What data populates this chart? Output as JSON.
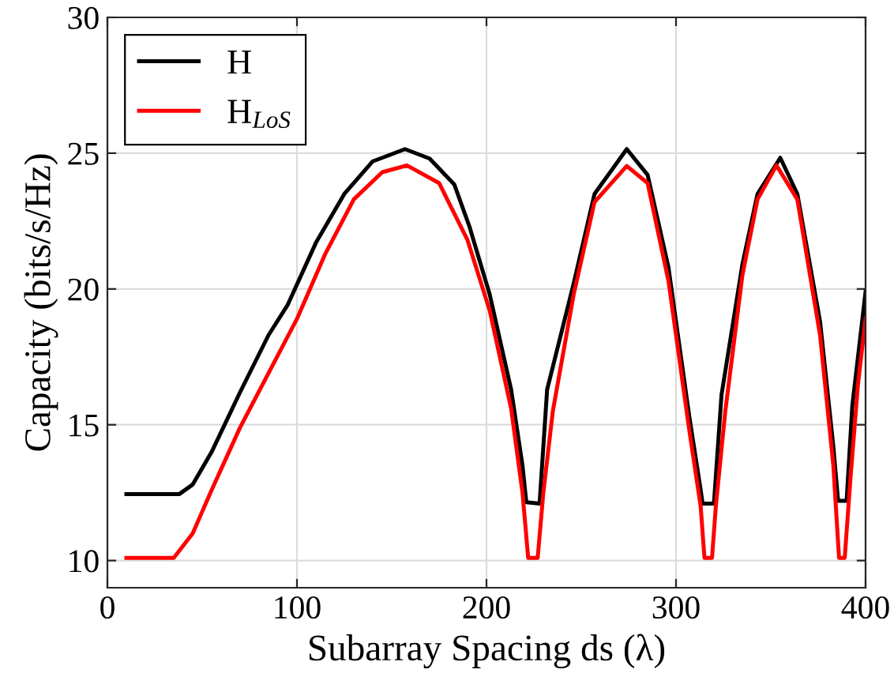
{
  "chart_data": {
    "type": "line",
    "xlabel": "Subarray Spacing ds (λ)",
    "ylabel": "Capacity (bits/s/Hz)",
    "xlim": [
      0,
      400
    ],
    "ylim": [
      9,
      30
    ],
    "xticks": [
      0,
      100,
      200,
      300,
      400
    ],
    "yticks": [
      10,
      15,
      20,
      25,
      30
    ],
    "grid": true,
    "legend": "top left",
    "line_style": "solid",
    "marker": "none",
    "series": [
      {
        "name": "H",
        "color": "#000000",
        "x": [
          10,
          38,
          45,
          55,
          70,
          85,
          95,
          110,
          125,
          140,
          157,
          170,
          183,
          191,
          201.7,
          213,
          219,
          221,
          228,
          232,
          246,
          257,
          274,
          285,
          296,
          307,
          313,
          314,
          320,
          324,
          335,
          343,
          355,
          364,
          376,
          383,
          385.5,
          390,
          393,
          400
        ],
        "values": [
          12.45,
          12.45,
          12.8,
          14.0,
          16.2,
          18.3,
          19.4,
          21.7,
          23.5,
          24.7,
          25.15,
          24.8,
          23.85,
          22.3,
          19.8,
          16.3,
          13.5,
          12.15,
          12.1,
          16.3,
          20.2,
          23.5,
          25.15,
          24.2,
          20.8,
          15.3,
          12.6,
          12.1,
          12.1,
          16.1,
          20.9,
          23.5,
          24.83,
          23.5,
          18.8,
          14.2,
          12.2,
          12.2,
          15.7,
          19.9
        ]
      },
      {
        "name": "H$_{LoS}$",
        "color": "#ff0000",
        "x": [
          10,
          35,
          45,
          55,
          70,
          85,
          100,
          115,
          130,
          145,
          158,
          175,
          190,
          201.7,
          213,
          219,
          222,
          227,
          230,
          235,
          246,
          257,
          274,
          285,
          296,
          307,
          313,
          315,
          319,
          321,
          326,
          335,
          343,
          353,
          364,
          376,
          383,
          386,
          389,
          392,
          396,
          400
        ],
        "values": [
          10.1,
          10.1,
          11.0,
          12.6,
          14.9,
          16.9,
          18.9,
          21.3,
          23.3,
          24.3,
          24.55,
          23.9,
          21.8,
          19.2,
          15.6,
          12.5,
          10.1,
          10.1,
          12.5,
          15.5,
          19.8,
          23.2,
          24.53,
          23.9,
          20.3,
          14.8,
          12.0,
          10.1,
          10.1,
          12.0,
          15.5,
          20.5,
          23.3,
          24.55,
          23.3,
          18.3,
          13.5,
          10.1,
          10.1,
          13.0,
          16.5,
          18.9
        ]
      }
    ]
  }
}
